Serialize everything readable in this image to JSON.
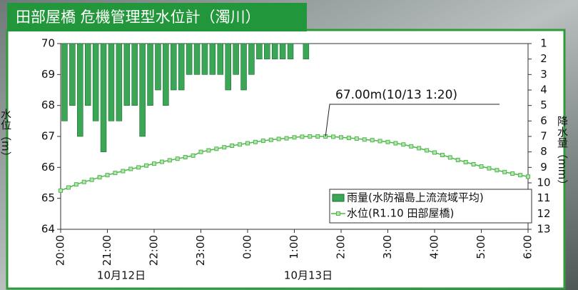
{
  "title": "田部屋橋 危機管理型水位計（濁川）",
  "chart_data": {
    "type": "combo",
    "y_label": "水位（m）",
    "y2_label": "降水量（mm）",
    "ylim": [
      64,
      70
    ],
    "yticks": [
      64,
      65,
      66,
      67,
      68,
      69,
      70
    ],
    "y2lim": [
      1,
      13
    ],
    "y2ticks": [
      1,
      2,
      3,
      4,
      5,
      6,
      7,
      8,
      9,
      10,
      11,
      12,
      13
    ],
    "y2_inverted": true,
    "legend": "lower right",
    "categories": [
      "20:00",
      null,
      null,
      null,
      null,
      null,
      "21:00",
      null,
      null,
      null,
      null,
      null,
      "22:00",
      null,
      null,
      null,
      null,
      null,
      "23:00",
      null,
      null,
      null,
      null,
      null,
      "0:00",
      null,
      null,
      null,
      null,
      null,
      "1:00",
      null,
      null,
      null,
      null,
      null,
      "2:00",
      null,
      null,
      null,
      null,
      null,
      "3:00",
      null,
      null,
      null,
      null,
      null,
      "4:00",
      null,
      null,
      null,
      null,
      null,
      "5:00",
      null,
      null,
      null,
      null,
      null,
      "6:00"
    ],
    "date_labels": [
      "10月12日",
      "10月13日"
    ],
    "annotation": "67.00m(10/13 1:20)",
    "series": [
      {
        "name": "雨量(水防福島上流流域平均)",
        "kind": "bar",
        "axis": "y2",
        "color": "#3aa656",
        "values": [
          6,
          5,
          7,
          5,
          6,
          8,
          6,
          6,
          5,
          5,
          7,
          5,
          4,
          5,
          4,
          4,
          3,
          3,
          3,
          3,
          3,
          4,
          3,
          4,
          3,
          2,
          2,
          2,
          2,
          2,
          null,
          2,
          null,
          null,
          null,
          null,
          null,
          null,
          null,
          null,
          null,
          null,
          null,
          null,
          null,
          null,
          null,
          null,
          null,
          null,
          null,
          null,
          null,
          null,
          null,
          null,
          null,
          null,
          null,
          null,
          null
        ]
      },
      {
        "name": "水位(R1.10 田部屋橋)",
        "kind": "line",
        "color": "#4db84a",
        "values": [
          65.25,
          65.35,
          65.45,
          65.53,
          65.6,
          65.68,
          65.75,
          65.82,
          65.88,
          65.95,
          66.0,
          66.06,
          66.12,
          66.18,
          66.23,
          66.28,
          66.33,
          66.38,
          66.5,
          66.55,
          66.6,
          66.65,
          66.7,
          66.74,
          66.78,
          66.82,
          66.86,
          66.89,
          66.92,
          66.94,
          66.97,
          66.99,
          67.0,
          67.0,
          67.0,
          66.99,
          66.97,
          66.95,
          66.93,
          66.9,
          66.88,
          66.85,
          66.82,
          66.78,
          66.74,
          66.68,
          66.62,
          66.55,
          66.48,
          66.4,
          66.32,
          66.24,
          66.17,
          66.1,
          66.03,
          65.97,
          65.91,
          65.85,
          65.8,
          65.75,
          65.7
        ]
      }
    ]
  }
}
